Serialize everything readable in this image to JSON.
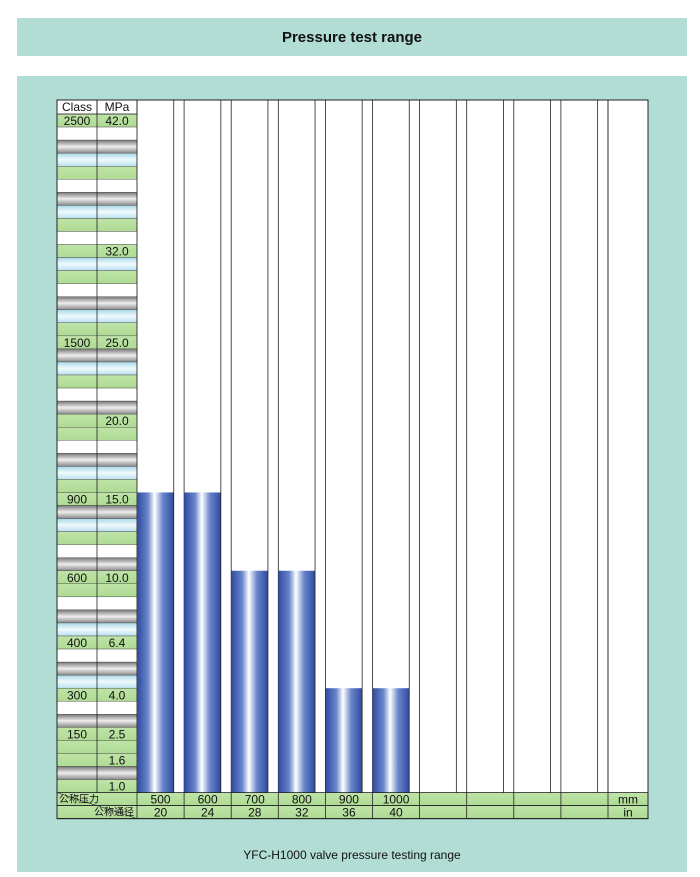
{
  "header": {
    "title": "Pressure test range"
  },
  "caption": "YFC-H1000 valve pressure testing range",
  "colors": {
    "background_panel": "#b2ddd5",
    "bar_dark": "#3a55a8",
    "bar_light": "#ffffff",
    "row_green": "#b8e0a0",
    "row_blue": "#c8e8f0",
    "row_gray": "#a8a8a8"
  },
  "table": {
    "col_class_header": "Class",
    "col_mpa_header": "MPa",
    "footer_pressure_label": "公称压力",
    "footer_diameter_label": "公称通径",
    "unit_mm": "mm",
    "unit_in": "in"
  },
  "chart_data": {
    "type": "bar",
    "ylabel": "MPa",
    "ylim": [
      0,
      42.0
    ],
    "ticks": [
      {
        "mpa": "42.0",
        "class": "2500"
      },
      {
        "mpa": "32.0",
        "class": ""
      },
      {
        "mpa": "25.0",
        "class": "1500"
      },
      {
        "mpa": "20.0",
        "class": ""
      },
      {
        "mpa": "15.0",
        "class": "900"
      },
      {
        "mpa": "10.0",
        "class": "600"
      },
      {
        "mpa": "6.4",
        "class": "400"
      },
      {
        "mpa": "4.0",
        "class": "300"
      },
      {
        "mpa": "2.5",
        "class": "150"
      },
      {
        "mpa": "1.6",
        "class": ""
      },
      {
        "mpa": "1.0",
        "class": ""
      }
    ],
    "categories_mm": [
      "500",
      "600",
      "700",
      "800",
      "900",
      "1000",
      "",
      "",
      "",
      ""
    ],
    "categories_in": [
      "20",
      "24",
      "28",
      "32",
      "36",
      "40",
      "",
      "",
      "",
      ""
    ],
    "values_mpa": [
      15.0,
      15.0,
      10.0,
      10.0,
      4.0,
      4.0,
      null,
      null,
      null,
      null
    ]
  }
}
